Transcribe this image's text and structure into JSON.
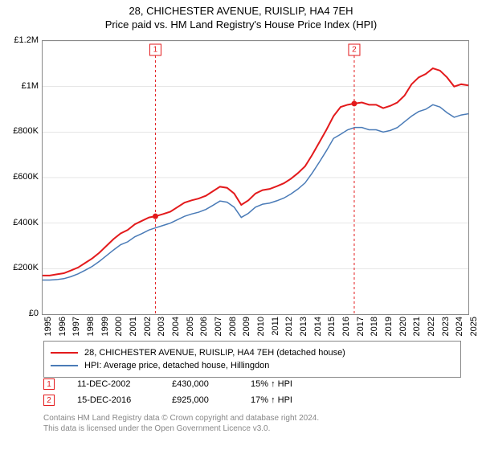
{
  "title": "28, CHICHESTER AVENUE, RUISLIP, HA4 7EH",
  "subtitle": "Price paid vs. HM Land Registry's House Price Index (HPI)",
  "chart": {
    "type": "line",
    "background_color": "#ffffff",
    "border_color": "#888888",
    "grid_color": "#cccccc",
    "ylim": [
      0,
      1200000
    ],
    "ytick_step": 200000,
    "ytick_labels": [
      "£0",
      "£200K",
      "£400K",
      "£600K",
      "£800K",
      "£1M",
      "£1.2M"
    ],
    "xlim": [
      1995,
      2025
    ],
    "xtick_step": 1,
    "xtick_labels": [
      "1995",
      "1996",
      "1997",
      "1998",
      "1999",
      "2000",
      "2001",
      "2002",
      "2003",
      "2004",
      "2005",
      "2006",
      "2007",
      "2008",
      "2009",
      "2010",
      "2011",
      "2012",
      "2013",
      "2014",
      "2015",
      "2016",
      "2017",
      "2018",
      "2019",
      "2020",
      "2021",
      "2022",
      "2023",
      "2024",
      "2025"
    ],
    "series": [
      {
        "name": "property",
        "label": "28, CHICHESTER AVENUE, RUISLIP, HA4 7EH (detached house)",
        "color": "#e31a1c",
        "line_width": 2,
        "data": [
          [
            1995,
            170000
          ],
          [
            1995.5,
            170000
          ],
          [
            1996,
            175000
          ],
          [
            1996.5,
            180000
          ],
          [
            1997,
            192000
          ],
          [
            1997.5,
            205000
          ],
          [
            1998,
            225000
          ],
          [
            1998.5,
            245000
          ],
          [
            1999,
            270000
          ],
          [
            1999.5,
            300000
          ],
          [
            2000,
            330000
          ],
          [
            2000.5,
            355000
          ],
          [
            2001,
            370000
          ],
          [
            2001.5,
            395000
          ],
          [
            2002,
            410000
          ],
          [
            2002.5,
            425000
          ],
          [
            2002.95,
            430000
          ],
          [
            2003.5,
            440000
          ],
          [
            2004,
            450000
          ],
          [
            2004.5,
            470000
          ],
          [
            2005,
            490000
          ],
          [
            2005.5,
            500000
          ],
          [
            2006,
            508000
          ],
          [
            2006.5,
            520000
          ],
          [
            2007,
            540000
          ],
          [
            2007.5,
            560000
          ],
          [
            2008,
            555000
          ],
          [
            2008.5,
            530000
          ],
          [
            2009,
            480000
          ],
          [
            2009.5,
            500000
          ],
          [
            2010,
            530000
          ],
          [
            2010.5,
            545000
          ],
          [
            2011,
            550000
          ],
          [
            2011.5,
            562000
          ],
          [
            2012,
            575000
          ],
          [
            2012.5,
            595000
          ],
          [
            2013,
            620000
          ],
          [
            2013.5,
            650000
          ],
          [
            2014,
            700000
          ],
          [
            2014.5,
            755000
          ],
          [
            2015,
            810000
          ],
          [
            2015.5,
            870000
          ],
          [
            2016,
            910000
          ],
          [
            2016.5,
            920000
          ],
          [
            2016.96,
            925000
          ],
          [
            2017.5,
            930000
          ],
          [
            2018,
            920000
          ],
          [
            2018.5,
            920000
          ],
          [
            2019,
            905000
          ],
          [
            2019.5,
            915000
          ],
          [
            2020,
            930000
          ],
          [
            2020.5,
            960000
          ],
          [
            2021,
            1010000
          ],
          [
            2021.5,
            1040000
          ],
          [
            2022,
            1055000
          ],
          [
            2022.5,
            1080000
          ],
          [
            2023,
            1070000
          ],
          [
            2023.5,
            1040000
          ],
          [
            2024,
            1000000
          ],
          [
            2024.5,
            1010000
          ],
          [
            2025,
            1005000
          ]
        ]
      },
      {
        "name": "hpi",
        "label": "HPI: Average price, detached house, Hillingdon",
        "color": "#4a7bb7",
        "line_width": 1.5,
        "data": [
          [
            1995,
            150000
          ],
          [
            1995.5,
            150000
          ],
          [
            1996,
            152000
          ],
          [
            1996.5,
            156000
          ],
          [
            1997,
            165000
          ],
          [
            1997.5,
            177000
          ],
          [
            1998,
            193000
          ],
          [
            1998.5,
            210000
          ],
          [
            1999,
            232000
          ],
          [
            1999.5,
            257000
          ],
          [
            2000,
            282000
          ],
          [
            2000.5,
            305000
          ],
          [
            2001,
            318000
          ],
          [
            2001.5,
            340000
          ],
          [
            2002,
            354000
          ],
          [
            2002.5,
            370000
          ],
          [
            2003,
            380000
          ],
          [
            2003.5,
            390000
          ],
          [
            2004,
            400000
          ],
          [
            2004.5,
            415000
          ],
          [
            2005,
            430000
          ],
          [
            2005.5,
            440000
          ],
          [
            2006,
            448000
          ],
          [
            2006.5,
            460000
          ],
          [
            2007,
            478000
          ],
          [
            2007.5,
            497000
          ],
          [
            2008,
            492000
          ],
          [
            2008.5,
            470000
          ],
          [
            2009,
            425000
          ],
          [
            2009.5,
            443000
          ],
          [
            2010,
            470000
          ],
          [
            2010.5,
            483000
          ],
          [
            2011,
            488000
          ],
          [
            2011.5,
            498000
          ],
          [
            2012,
            510000
          ],
          [
            2012.5,
            528000
          ],
          [
            2013,
            550000
          ],
          [
            2013.5,
            577000
          ],
          [
            2014,
            620000
          ],
          [
            2014.5,
            668000
          ],
          [
            2015,
            718000
          ],
          [
            2015.5,
            772000
          ],
          [
            2016,
            790000
          ],
          [
            2016.5,
            810000
          ],
          [
            2017,
            820000
          ],
          [
            2017.5,
            820000
          ],
          [
            2018,
            810000
          ],
          [
            2018.5,
            810000
          ],
          [
            2019,
            800000
          ],
          [
            2019.5,
            807000
          ],
          [
            2020,
            820000
          ],
          [
            2020.5,
            845000
          ],
          [
            2021,
            870000
          ],
          [
            2021.5,
            890000
          ],
          [
            2022,
            900000
          ],
          [
            2022.5,
            920000
          ],
          [
            2023,
            910000
          ],
          [
            2023.5,
            885000
          ],
          [
            2024,
            865000
          ],
          [
            2024.5,
            875000
          ],
          [
            2025,
            880000
          ]
        ]
      }
    ],
    "sale_markers": [
      {
        "label": "1",
        "x": 2002.95,
        "y": 430000,
        "color": "#e31a1c"
      },
      {
        "label": "2",
        "x": 2016.96,
        "y": 925000,
        "color": "#e31a1c"
      }
    ]
  },
  "legend": {
    "items": [
      {
        "color": "#e31a1c",
        "width": 2,
        "label_key": "chart.series.0.label"
      },
      {
        "color": "#4a7bb7",
        "width": 1.5,
        "label_key": "chart.series.1.label"
      }
    ]
  },
  "sales": [
    {
      "marker": "1",
      "marker_color": "#e31a1c",
      "date": "11-DEC-2002",
      "price": "£430,000",
      "hpi": "15% ↑ HPI"
    },
    {
      "marker": "2",
      "marker_color": "#e31a1c",
      "date": "15-DEC-2016",
      "price": "£925,000",
      "hpi": "17% ↑ HPI"
    }
  ],
  "footer_line1": "Contains HM Land Registry data © Crown copyright and database right 2024.",
  "footer_line2": "This data is licensed under the Open Government Licence v3.0."
}
